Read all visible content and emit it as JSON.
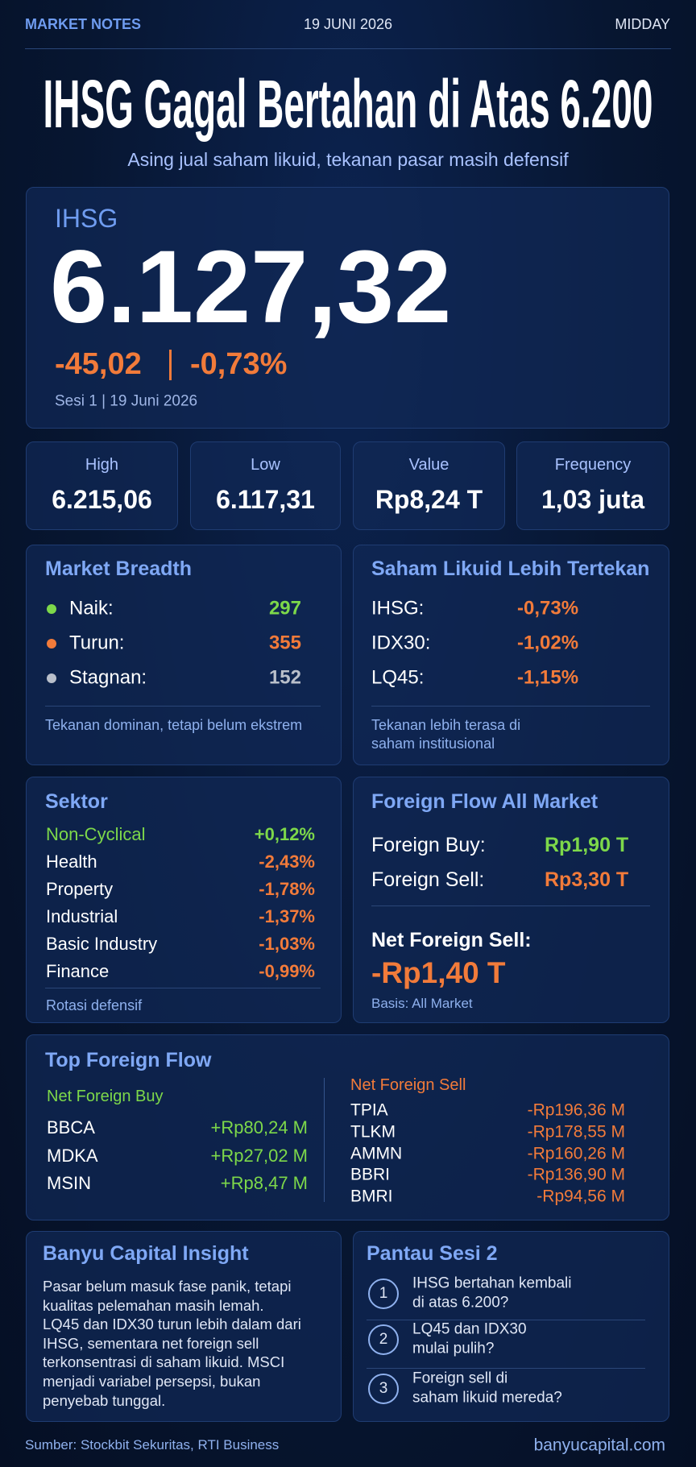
{
  "header": {
    "label": "MARKET NOTES",
    "date": "19 JUNI 2026",
    "edition": "MIDDAY"
  },
  "title": "IHSG Gagal Bertahan di Atas 6.200",
  "subtitle": "Asing jual saham likuid, tekanan pasar masih defensif",
  "index": {
    "name": "IHSG",
    "value": "6.127,32",
    "change": "-45,02",
    "change_pct": "-0,73%",
    "session": "Sesi 1 | 19 Juni 2026"
  },
  "stats": [
    {
      "label": "High",
      "value": "6.215,06"
    },
    {
      "label": "Low",
      "value": "6.117,31"
    },
    {
      "label": "Value",
      "value": "Rp8,24 T"
    },
    {
      "label": "Frequency",
      "value": "1,03 juta"
    }
  ],
  "breadth": {
    "title": "Market Breadth",
    "items": [
      {
        "label": "Naik:",
        "value": "297"
      },
      {
        "label": "Turun:",
        "value": "355"
      },
      {
        "label": "Stagnan:",
        "value": "152"
      }
    ],
    "note": "Tekanan dominan, tetapi belum ekstrem"
  },
  "liquid": {
    "title": "Saham Likuid Lebih Tertekan",
    "items": [
      {
        "label": "IHSG:",
        "value": "-0,73%"
      },
      {
        "label": "IDX30:",
        "value": "-1,02%"
      },
      {
        "label": "LQ45:",
        "value": "-1,15%"
      }
    ],
    "note_lines": [
      "Tekanan lebih terasa di",
      "saham institusional"
    ]
  },
  "sectors": {
    "title": "Sektor",
    "items": [
      {
        "name": "Non-Cyclical",
        "value": "+0,12%"
      },
      {
        "name": "Health",
        "value": "-2,43%"
      },
      {
        "name": "Property",
        "value": "-1,78%"
      },
      {
        "name": "Industrial",
        "value": "-1,37%"
      },
      {
        "name": "Basic Industry",
        "value": "-1,03%"
      },
      {
        "name": "Finance",
        "value": "-0,99%"
      }
    ],
    "note": "Rotasi defensif"
  },
  "foreign": {
    "title": "Foreign Flow All Market",
    "items": [
      {
        "label": "Foreign Buy:",
        "value": "Rp1,90 T"
      },
      {
        "label": "Foreign Sell:",
        "value": "Rp3,30 T"
      }
    ],
    "net_label": "Net Foreign Sell:",
    "net_value": "-Rp1,40 T",
    "basis": "Basis: All Market"
  },
  "top_flow": {
    "title": "Top Foreign Flow",
    "buy": {
      "title": "Net Foreign Buy",
      "items": [
        {
          "code": "BBCA",
          "value": "+Rp80,24 M"
        },
        {
          "code": "MDKA",
          "value": "+Rp27,02 M"
        },
        {
          "code": "MSIN",
          "value": "+Rp8,47 M"
        }
      ]
    },
    "sell": {
      "title": "Net Foreign Sell",
      "items": [
        {
          "code": "TPIA",
          "value": "-Rp196,36 M"
        },
        {
          "code": "TLKM",
          "value": "-Rp178,55 M"
        },
        {
          "code": "AMMN",
          "value": "-Rp160,26 M"
        },
        {
          "code": "BBRI",
          "value": "-Rp136,90 M"
        },
        {
          "code": "BMRI",
          "value": "-Rp94,56 M"
        }
      ]
    }
  },
  "insight": {
    "title": "Banyu Capital Insight",
    "lines": [
      "Pasar belum masuk fase panik, tetapi",
      "kualitas pelemahan masih lemah.",
      "LQ45 dan IDX30 turun lebih dalam dari",
      "IHSG, sementara net foreign sell",
      "terkonsentrasi di saham likuid. MSCI",
      "menjadi variabel persepsi, bukan",
      "penyebab tunggal."
    ]
  },
  "watch": {
    "title": "Pantau Sesi 2",
    "items": [
      {
        "number": "1",
        "lines": [
          "IHSG bertahan kembali",
          "di atas 6.200?"
        ]
      },
      {
        "number": "2",
        "lines": [
          "LQ45 dan IDX30",
          "mulai pulih?"
        ]
      },
      {
        "number": "3",
        "lines": [
          "Foreign sell di",
          "saham likuid mereda?"
        ]
      }
    ]
  },
  "footer": {
    "source": "Sumber: Stockbit Sekuritas, RTI Business",
    "site": "banyucapital.com"
  }
}
